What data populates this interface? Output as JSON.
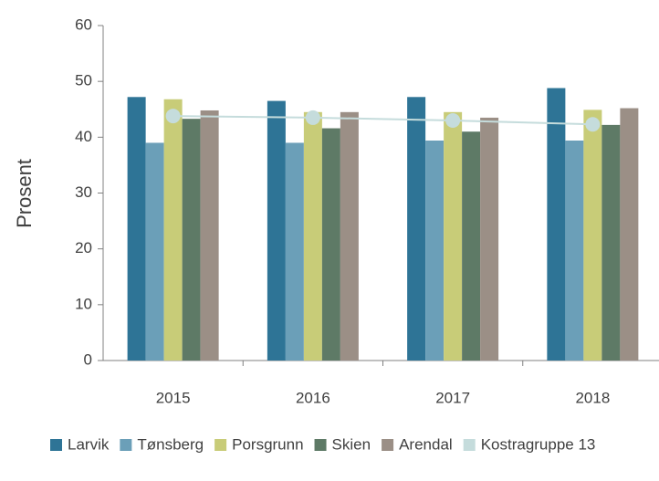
{
  "chart_data": {
    "type": "bar",
    "y_label": "Prosent",
    "categories": [
      "2015",
      "2016",
      "2017",
      "2018"
    ],
    "ylim": [
      0,
      60
    ],
    "yticks": [
      0,
      10,
      20,
      30,
      40,
      50,
      60
    ],
    "series": [
      {
        "name": "Larvik",
        "color": "#2e7496",
        "values": [
          47.2,
          46.5,
          47.2,
          48.8
        ]
      },
      {
        "name": "Tønsberg",
        "color": "#6b9fb8",
        "values": [
          39.0,
          39.0,
          39.4,
          39.4
        ]
      },
      {
        "name": "Porsgrunn",
        "color": "#c8cc78",
        "values": [
          46.8,
          44.5,
          44.5,
          44.9
        ]
      },
      {
        "name": "Skien",
        "color": "#5e7a66",
        "values": [
          43.3,
          41.6,
          41.0,
          42.2
        ]
      },
      {
        "name": "Arendal",
        "color": "#9b8f86",
        "values": [
          44.8,
          44.5,
          43.5,
          45.2
        ]
      },
      {
        "name": "Kostragruppe 13",
        "color": "#c5dcdc",
        "type": "line",
        "values": [
          43.8,
          43.5,
          43.0,
          42.3
        ]
      }
    ]
  }
}
